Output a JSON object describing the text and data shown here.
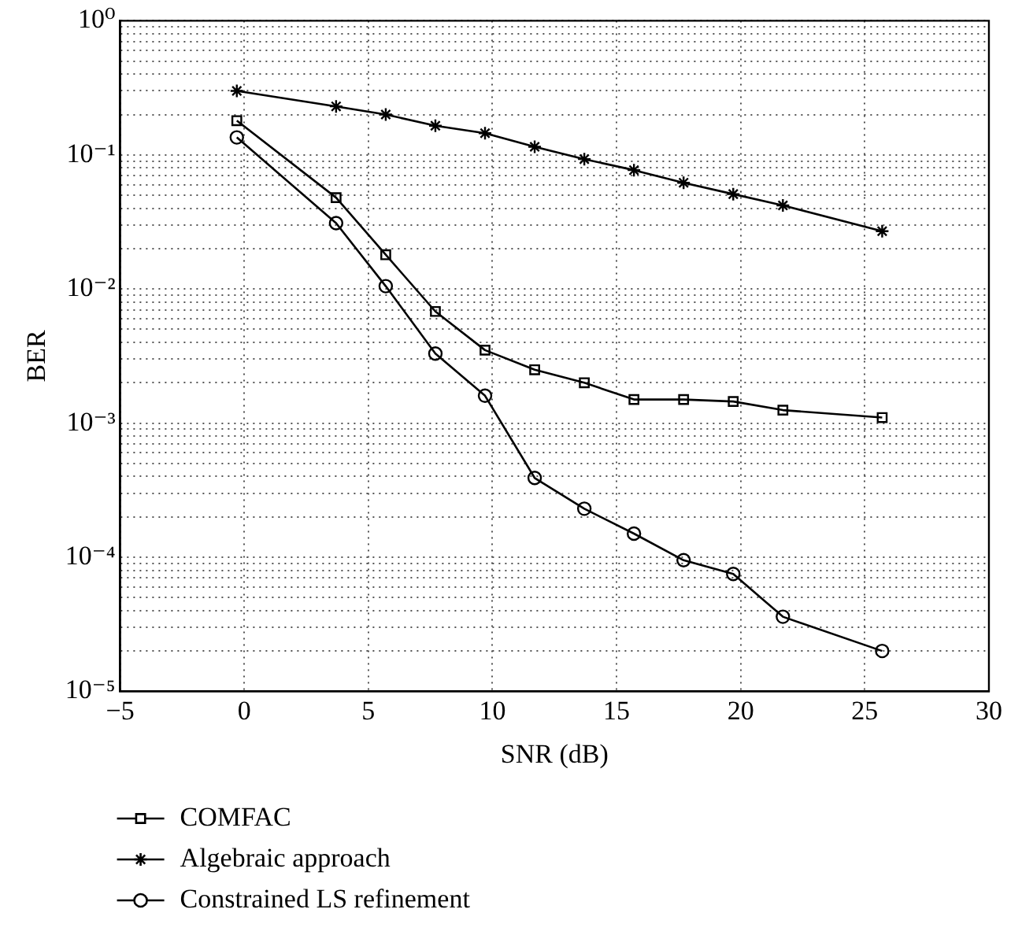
{
  "chart_data": {
    "type": "line",
    "xlabel": "SNR (dB)",
    "ylabel": "BER",
    "log": "y",
    "grid": true,
    "legend": "bottom",
    "line_style": "solid",
    "xlim": [
      -5,
      30
    ],
    "xticks": [
      {
        "value": -5,
        "label": "−5"
      },
      0,
      5,
      10,
      15,
      20,
      25,
      30
    ],
    "ylim": [
      1e-05,
      1
    ],
    "yticks": [
      {
        "value": 1e-05,
        "label": "10⁻⁵"
      },
      {
        "value": 2e-05,
        "label": null
      },
      {
        "value": 3e-05,
        "label": null
      },
      {
        "value": 4e-05,
        "label": null
      },
      {
        "value": 5e-05,
        "label": null
      },
      {
        "value": 6e-05,
        "label": null
      },
      {
        "value": 7e-05,
        "label": null
      },
      {
        "value": 8e-05,
        "label": null
      },
      {
        "value": 9e-05,
        "label": null
      },
      {
        "value": 0.0001,
        "label": "10⁻⁴"
      },
      {
        "value": 0.0002,
        "label": null
      },
      {
        "value": 0.0003,
        "label": null
      },
      {
        "value": 0.0004,
        "label": null
      },
      {
        "value": 0.0005,
        "label": null
      },
      {
        "value": 0.0006,
        "label": null
      },
      {
        "value": 0.0007,
        "label": null
      },
      {
        "value": 0.0008,
        "label": null
      },
      {
        "value": 0.0009,
        "label": null
      },
      {
        "value": 0.001,
        "label": "10⁻³"
      },
      {
        "value": 0.002,
        "label": null
      },
      {
        "value": 0.003,
        "label": null
      },
      {
        "value": 0.004,
        "label": null
      },
      {
        "value": 0.005,
        "label": null
      },
      {
        "value": 0.006,
        "label": null
      },
      {
        "value": 0.007,
        "label": null
      },
      {
        "value": 0.008,
        "label": null
      },
      {
        "value": 0.009,
        "label": null
      },
      {
        "value": 0.01,
        "label": "10⁻²"
      },
      {
        "value": 0.02,
        "label": null
      },
      {
        "value": 0.03,
        "label": null
      },
      {
        "value": 0.04,
        "label": null
      },
      {
        "value": 0.05,
        "label": null
      },
      {
        "value": 0.06,
        "label": null
      },
      {
        "value": 0.07,
        "label": null
      },
      {
        "value": 0.08,
        "label": null
      },
      {
        "value": 0.09,
        "label": null
      },
      {
        "value": 0.1,
        "label": "10⁻¹"
      },
      {
        "value": 0.2,
        "label": null
      },
      {
        "value": 0.3,
        "label": null
      },
      {
        "value": 0.4,
        "label": null
      },
      {
        "value": 0.5,
        "label": null
      },
      {
        "value": 0.6,
        "label": null
      },
      {
        "value": 0.7,
        "label": null
      },
      {
        "value": 0.8,
        "label": null
      },
      {
        "value": 0.9,
        "label": null
      },
      {
        "value": 1,
        "label": "10⁰"
      }
    ],
    "x": [
      -0.3,
      3.7,
      5.7,
      7.7,
      9.7,
      11.7,
      13.7,
      15.7,
      17.7,
      19.7,
      21.7,
      25.7
    ],
    "series": [
      {
        "name": "COMFAC",
        "color": "#000000",
        "marker": "square",
        "values": [
          0.18,
          0.048,
          0.018,
          0.0068,
          0.0035,
          0.0025,
          0.002,
          0.0015,
          0.0015,
          0.00145,
          0.00125,
          0.0011
        ]
      },
      {
        "name": "Algebraic approach",
        "color": "#000000",
        "marker": "cross",
        "values": [
          0.3,
          0.23,
          0.2,
          0.165,
          0.145,
          0.115,
          0.093,
          0.077,
          0.062,
          0.051,
          0.042,
          0.027
        ]
      },
      {
        "name": "Constrained LS refinement",
        "color": "#000000",
        "marker": "circle",
        "values": [
          0.135,
          0.031,
          0.0105,
          0.0033,
          0.0016,
          0.00039,
          0.00023,
          0.00015,
          9.5e-05,
          7.5e-05,
          3.6e-05,
          2e-05
        ]
      }
    ]
  }
}
